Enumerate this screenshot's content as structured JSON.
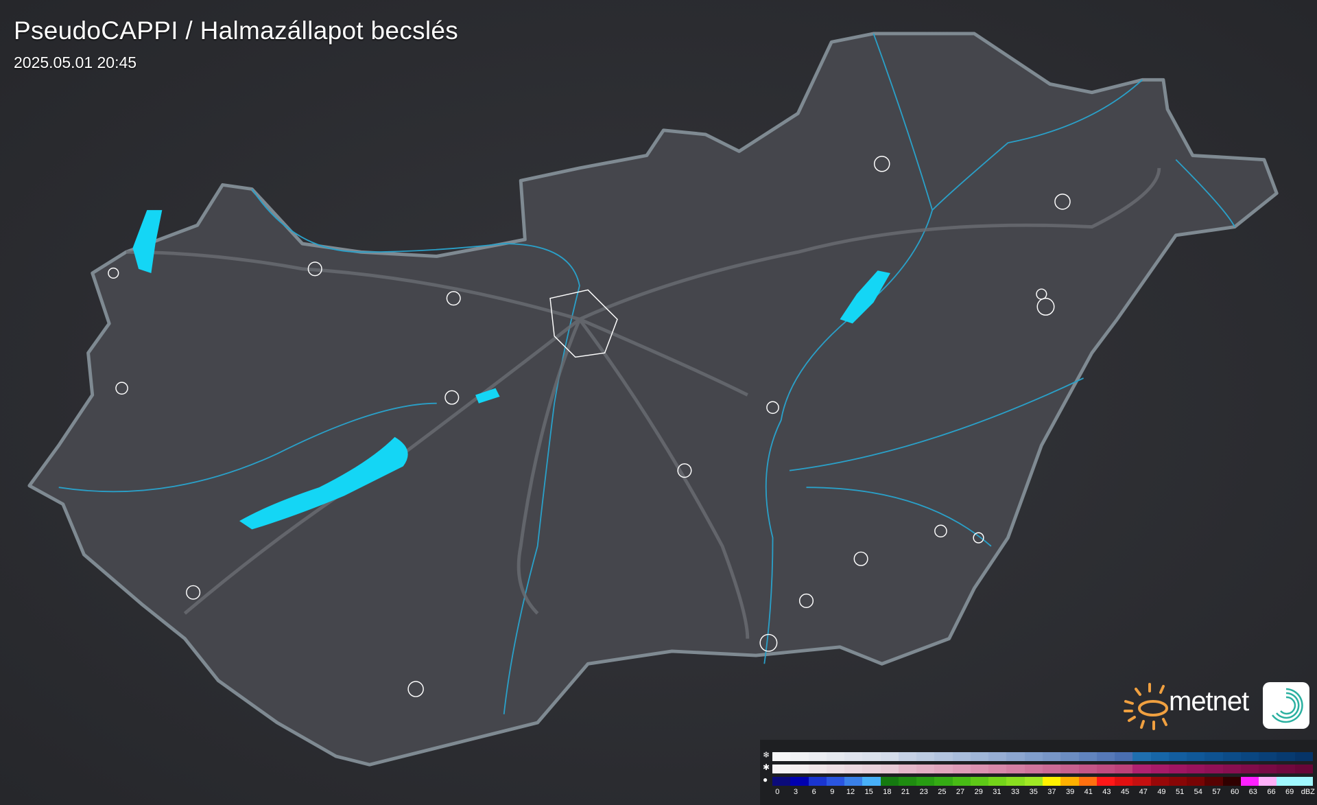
{
  "header": {
    "title": "PseudoCAPPI  / Halmazállapot becslés",
    "timestamp": "2025.05.01 20:45"
  },
  "logo": {
    "brand": "metnet",
    "sun_color": "#f0a040",
    "icon_color": "#2ab0a0"
  },
  "legend": {
    "rows": [
      {
        "type": "snow",
        "icon": "snowflake-icon",
        "colors": [
          "#f7f7f8",
          "#f1f2f5",
          "#eceef3",
          "#e6e9f0",
          "#e0e4ee",
          "#dbe1ec",
          "#d4dcea",
          "#c5d1e5",
          "#bccbe2",
          "#b3c4df",
          "#a9bddc",
          "#a0b6d8",
          "#97aed4",
          "#8ca6d0",
          "#819ecc",
          "#7896c7",
          "#6c8dc2",
          "#6184be",
          "#5679b8",
          "#4a6fb2",
          "#1f6fb0",
          "#1766a8",
          "#135ea0",
          "#105898",
          "#0e5290",
          "#0c4c88",
          "#0a4680",
          "#094078",
          "#073a70",
          "#063468"
        ]
      },
      {
        "type": "mixed",
        "icon": "sleet-icon",
        "colors": [
          "#f7f4f5",
          "#f4eef0",
          "#f1e6ea",
          "#eedfe5",
          "#ecd8e0",
          "#ead2dc",
          "#e8cad6",
          "#e5b8ca",
          "#e3afc4",
          "#e1a6be",
          "#de9cb8",
          "#db92b1",
          "#d888aa",
          "#d47ea3",
          "#d0749c",
          "#cc6a95",
          "#c8608e",
          "#c45587",
          "#c04b80",
          "#bc4179",
          "#b02170",
          "#a81a68",
          "#a01562",
          "#98125c",
          "#901056",
          "#880e50",
          "#800c4a",
          "#780a44",
          "#70083e",
          "#680638"
        ]
      },
      {
        "type": "rain",
        "icon": "raindrop-icon",
        "colors": [
          "#0b0b7a",
          "#0000b0",
          "#1a35d0",
          "#2a55e0",
          "#3a80e8",
          "#48b0f8",
          "#157a10",
          "#1f8c10",
          "#289c12",
          "#35ab14",
          "#48bb15",
          "#5ec817",
          "#74d41a",
          "#8ade20",
          "#a0e825",
          "#fff200",
          "#ffb000",
          "#ff7010",
          "#ff1818",
          "#e01010",
          "#c41010",
          "#980808",
          "#880606",
          "#780404",
          "#580202",
          "#300000",
          "#ff20ff",
          "#ffb0f8",
          "#a0f8ff",
          "#a0f8ff"
        ]
      }
    ],
    "labels": [
      "0",
      "3",
      "6",
      "9",
      "12",
      "15",
      "18",
      "21",
      "23",
      "25",
      "27",
      "29",
      "31",
      "33",
      "35",
      "37",
      "39",
      "41",
      "43",
      "45",
      "47",
      "49",
      "51",
      "54",
      "57",
      "60",
      "63",
      "66",
      "69",
      "dBZ"
    ]
  }
}
